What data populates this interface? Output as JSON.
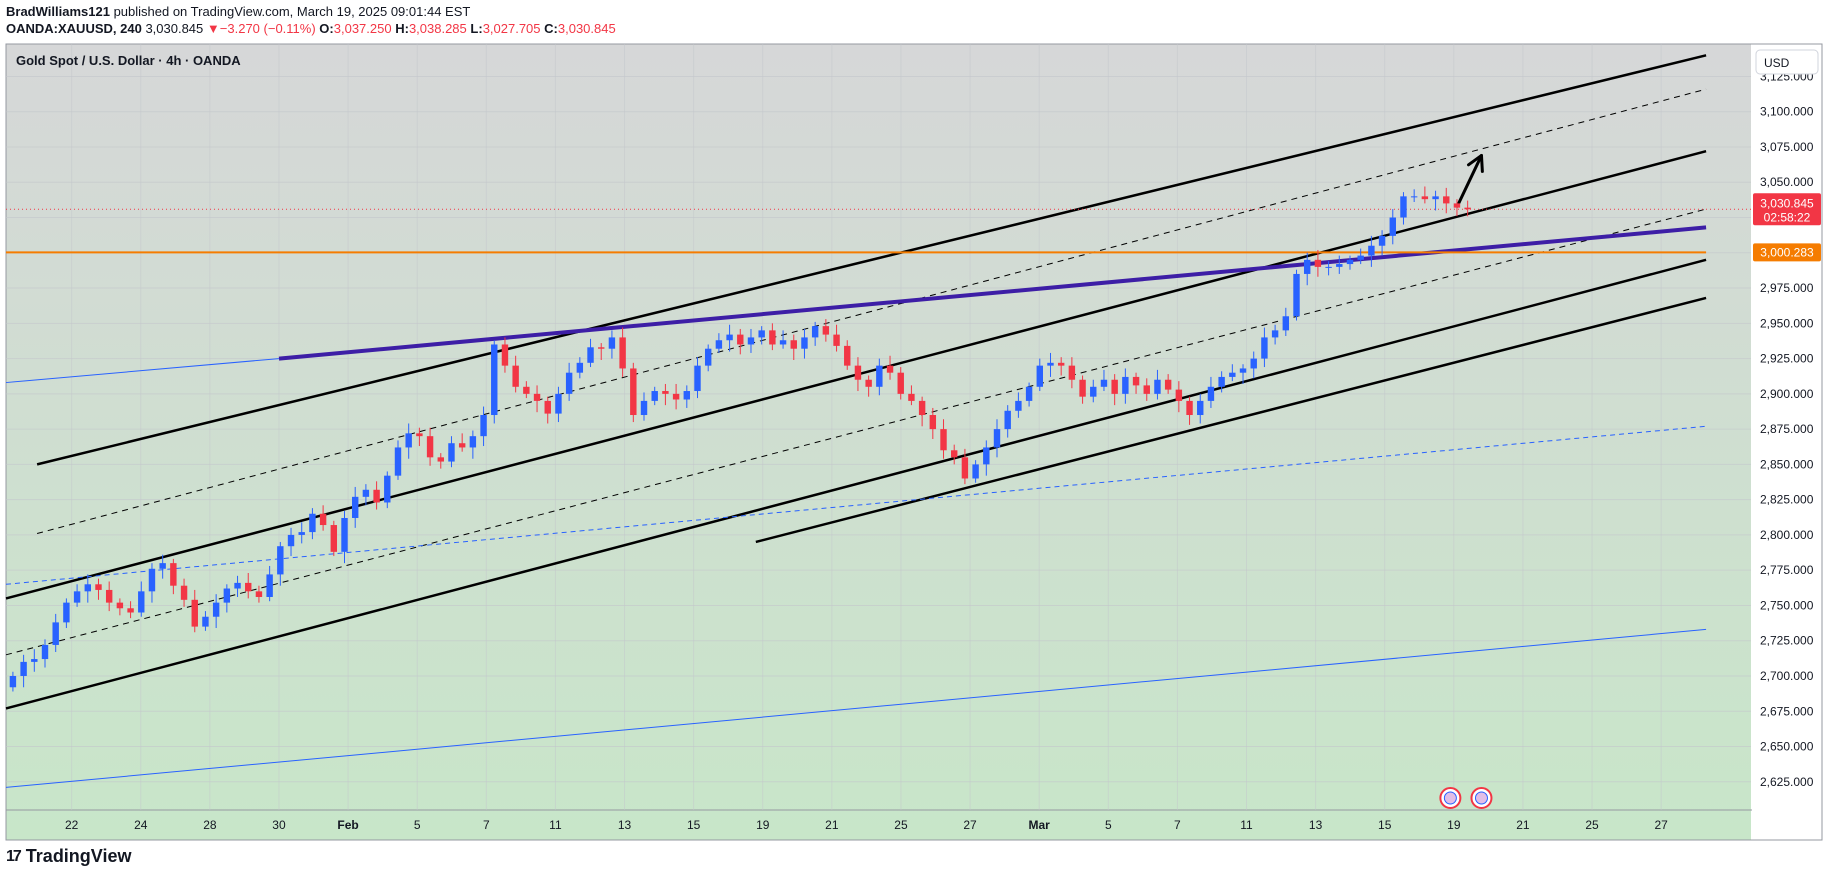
{
  "header": {
    "author": "BradWilliams121",
    "published_text": "published on TradingView.com, March 19, 2025 09:01:44 EST",
    "symbol": "OANDA:XAUUSD, 240",
    "last": "3,030.845",
    "change_arrow": "▼",
    "change": "−3.270 (−0.11%)",
    "o_label": "O:",
    "o_value": "3,037.250",
    "h_label": "H:",
    "h_value": "3,038.285",
    "l_label": "L:",
    "l_value": "3,027.705",
    "c_label": "C:",
    "c_value": "3,030.845"
  },
  "chart_title": "Gold Spot / U.S. Dollar · 4h · OANDA",
  "currency": "USD",
  "footer": {
    "brand": "TradingView",
    "logo_glyph": "17"
  },
  "colors": {
    "bull": "#2962ff",
    "bear": "#f23645",
    "channel": "#000000",
    "purple_line": "#3d1ea6",
    "orange_line": "#f57c00",
    "blue_line": "#2962ff",
    "bg_top": "#d6d7d8",
    "bg_bottom": "#c8e6c9"
  },
  "chart_data": {
    "type": "candlestick",
    "title": "Gold Spot / U.S. Dollar · 4h · OANDA",
    "ylim": [
      2605,
      3148
    ],
    "ytick_labels": [
      "3,125.000",
      "3,100.000",
      "3,075.000",
      "3,050.000",
      "3,025.000",
      "3,000.000",
      "2,975.000",
      "2,950.000",
      "2,925.000",
      "2,900.000",
      "2,875.000",
      "2,850.000",
      "2,825.000",
      "2,800.000",
      "2,775.000",
      "2,750.000",
      "2,725.000",
      "2,700.000",
      "2,675.000",
      "2,650.000",
      "2,625.000"
    ],
    "ytick_values": [
      3125,
      3100,
      3075,
      3050,
      3025,
      3000,
      2975,
      2950,
      2925,
      2900,
      2875,
      2850,
      2825,
      2800,
      2775,
      2750,
      2725,
      2700,
      2675,
      2650,
      2625
    ],
    "xtick_labels": [
      "22",
      "24",
      "28",
      "30",
      "Feb",
      "5",
      "7",
      "11",
      "13",
      "15",
      "19",
      "21",
      "25",
      "27",
      "Mar",
      "5",
      "7",
      "11",
      "13",
      "15",
      "19",
      "21",
      "25",
      "27"
    ],
    "xtick_positions": [
      1,
      3,
      5,
      7,
      9,
      11,
      13,
      15,
      17,
      19,
      21,
      23,
      25,
      27,
      29,
      31,
      33,
      35,
      37,
      39,
      41,
      43,
      45,
      47
    ],
    "x_range": [
      -0.9,
      49.6
    ],
    "price_label": {
      "value": 3030.845,
      "text": "3,030.845",
      "countdown": "02:58:22"
    },
    "level_label": {
      "value": 3000.283,
      "text": "3,000.283"
    },
    "closes": [
      2700,
      2710,
      2712,
      2722,
      2738,
      2752,
      2760,
      2765,
      2761,
      2752,
      2748,
      2745,
      2760,
      2776,
      2780,
      2764,
      2754,
      2735,
      2742,
      2752,
      2762,
      2766,
      2760,
      2756,
      2772,
      2792,
      2800,
      2802,
      2815,
      2807,
      2788,
      2812,
      2827,
      2832,
      2823,
      2842,
      2862,
      2872,
      2870,
      2855,
      2852,
      2865,
      2862,
      2870,
      2885,
      2935,
      2920,
      2905,
      2900,
      2895,
      2886,
      2900,
      2915,
      2922,
      2933,
      2932,
      2940,
      2918,
      2885,
      2895,
      2902,
      2900,
      2896,
      2902,
      2920,
      2932,
      2938,
      2942,
      2935,
      2940,
      2945,
      2935,
      2938,
      2932,
      2940,
      2948,
      2942,
      2934,
      2920,
      2910,
      2905,
      2920,
      2915,
      2900,
      2895,
      2885,
      2875,
      2860,
      2855,
      2840,
      2850,
      2862,
      2875,
      2888,
      2895,
      2905,
      2920,
      2922,
      2920,
      2910,
      2898,
      2905,
      2910,
      2900,
      2912,
      2906,
      2900,
      2910,
      2903,
      2895,
      2885,
      2895,
      2905,
      2912,
      2915,
      2918,
      2925,
      2940,
      2945,
      2955,
      2985,
      2995,
      2990,
      2990,
      2992,
      2995,
      2998,
      3005,
      3012,
      3025,
      3040,
      3040,
      3038,
      3040,
      3035,
      3032,
      3030.845
    ],
    "series": [
      {
        "name": "Channel upper",
        "style": "solid",
        "color": "#000000",
        "x": [
          0,
          48.3
        ],
        "y": [
          2850,
          3140
        ]
      },
      {
        "name": "Channel upper mid (dashed)",
        "style": "dashed",
        "color": "#000000",
        "x": [
          0,
          48.3
        ],
        "y": [
          2801,
          3116
        ]
      },
      {
        "name": "Channel middle",
        "style": "solid",
        "color": "#000000",
        "x": [
          -0.9,
          48.3
        ],
        "y": [
          2755,
          3072
        ]
      },
      {
        "name": "Channel lower mid (dashed)",
        "style": "dashed",
        "color": "#000000",
        "x": [
          -0.9,
          48.3
        ],
        "y": [
          2715,
          3031
        ]
      },
      {
        "name": "Channel lower",
        "style": "solid",
        "color": "#000000",
        "x": [
          -0.9,
          48.3
        ],
        "y": [
          2677,
          2995
        ]
      },
      {
        "name": "Support line",
        "style": "solid",
        "color": "#000000",
        "x": [
          20.8,
          48.3
        ],
        "y": [
          2795,
          2968
        ]
      },
      {
        "name": "Purple trendline",
        "style": "solid",
        "color": "#3d1ea6",
        "x": [
          7,
          48.3
        ],
        "y": [
          2925,
          3018
        ]
      },
      {
        "name": "Blue trendline",
        "style": "solid",
        "color": "#2962ff",
        "x": [
          -0.9,
          7
        ],
        "y": [
          2908,
          2925
        ]
      },
      {
        "name": "Blue dashed trendline",
        "style": "dashed",
        "color": "#2962ff",
        "x": [
          -0.9,
          48.3
        ],
        "y": [
          2765,
          2877
        ]
      },
      {
        "name": "Blue lower trendline",
        "style": "solid",
        "color": "#2962ff",
        "x": [
          -0.9,
          48.3
        ],
        "y": [
          2621,
          2733
        ]
      },
      {
        "name": "Horizontal level",
        "style": "solid",
        "color": "#f57c00",
        "x": [
          -0.9,
          48.3
        ],
        "y": [
          3000.283,
          3000.283
        ]
      },
      {
        "name": "Projection arrow",
        "style": "arrow",
        "color": "#000000",
        "x": [
          41.1,
          41.8
        ],
        "y": [
          3033,
          3069
        ]
      }
    ],
    "events": {
      "count": 2,
      "x": [
        40.9,
        41.8
      ]
    }
  }
}
